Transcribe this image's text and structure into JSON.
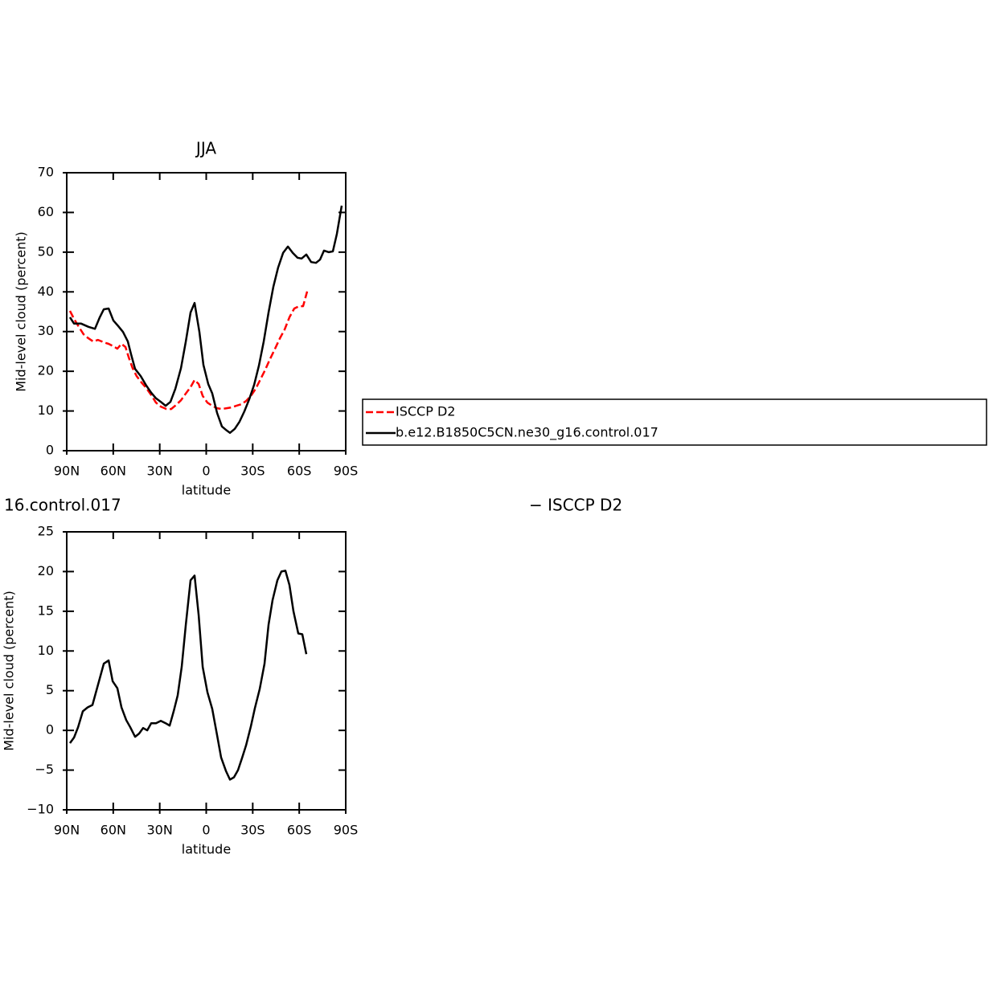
{
  "chart_data": [
    {
      "type": "line",
      "title": "JJA",
      "x_label": "latitude",
      "y_label": "Mid-level cloud (percent)",
      "xlim": [
        90,
        -90
      ],
      "xticks": [
        {
          "value": 90,
          "label": "90N"
        },
        {
          "value": 60,
          "label": "60N"
        },
        {
          "value": 30,
          "label": "30N"
        },
        0,
        {
          "value": -30,
          "label": "30S"
        },
        {
          "value": -60,
          "label": "60S"
        },
        {
          "value": -90,
          "label": "90S"
        }
      ],
      "ylim": [
        0,
        70
      ],
      "yticks": [
        0,
        10,
        20,
        30,
        40,
        50,
        60,
        70
      ],
      "legend": "right",
      "series": [
        {
          "name": "ISCCP D2",
          "color": "#ff0000",
          "style": "dashed",
          "x": [
            87.9,
            85.3,
            82.2,
            79.1,
            76,
            72.9,
            69.8,
            66.1,
            63,
            59.9,
            57.3,
            54.7,
            52.1,
            50,
            47.5,
            44.9,
            41.8,
            38.7,
            35.5,
            32.4,
            29.3,
            25.7,
            22.6,
            19.5,
            16.3,
            13.2,
            10.1,
            7.5,
            4.9,
            2.3,
            -0.8,
            -3.9,
            -7,
            -10.1,
            -13.2,
            -16.3,
            -19.4,
            -22.6,
            -25.7,
            -28.8,
            -31.9,
            -35,
            -38.1,
            -41.2,
            -44.4,
            -47.5,
            -50.6,
            -53.7,
            -56.8,
            -59.9,
            -62.5,
            -65.1
          ],
          "values": [
            35.2,
            33.2,
            31.2,
            29.3,
            28.3,
            27.5,
            27.9,
            27.3,
            26.9,
            26.3,
            25.7,
            26.9,
            26.1,
            23.5,
            20.8,
            18.8,
            17.2,
            15.8,
            14,
            12.1,
            11.1,
            10.5,
            10.5,
            11.5,
            12.7,
            14.4,
            16,
            17.8,
            16.8,
            13.8,
            12.1,
            11.3,
            10.7,
            10.5,
            10.7,
            10.9,
            11.3,
            11.7,
            12.5,
            13.8,
            15.6,
            18,
            20.4,
            23.1,
            25.7,
            28.3,
            30.5,
            33.6,
            35.8,
            36.4,
            36.4,
            40.1
          ]
        },
        {
          "name": "b.e12.B1850C5CN.ne30_g16.control.017",
          "color": "#000000",
          "style": "solid",
          "x": [
            87.9,
            85.3,
            80.7,
            76,
            71.8,
            68.7,
            66.1,
            63,
            59.9,
            56.8,
            53.7,
            50.6,
            48.5,
            45.9,
            42.3,
            38.7,
            35.5,
            32.4,
            29.3,
            26.2,
            23.1,
            19.9,
            16.3,
            13.2,
            10.1,
            7.5,
            4.4,
            1.8,
            -1.3,
            -3.9,
            -7,
            -10.1,
            -13.2,
            -15.3,
            -18.4,
            -21.5,
            -24.6,
            -27.7,
            -30.9,
            -34,
            -37.1,
            -40.2,
            -43.3,
            -46.4,
            -49.6,
            -52.7,
            -55.8,
            -58.9,
            -61.5,
            -64.6,
            -67.7,
            -70.8,
            -73.4,
            -76,
            -79.1,
            -81.7,
            -84.3,
            -87.4
          ],
          "values": [
            33.6,
            32,
            32,
            31.2,
            30.7,
            33.6,
            35.6,
            35.8,
            32.8,
            31.4,
            29.9,
            27.5,
            24.3,
            20.6,
            18.8,
            16.4,
            14.6,
            13.2,
            12.3,
            11.3,
            12.3,
            15.6,
            20.8,
            27.5,
            34.8,
            37.2,
            29.9,
            21.6,
            16.8,
            14.4,
            9.5,
            6.1,
            5.1,
            4.5,
            5.5,
            7.3,
            9.9,
            12.9,
            16.6,
            21.4,
            27.5,
            34.8,
            41.3,
            46.1,
            49.8,
            51.4,
            49.8,
            48.6,
            48.4,
            49.4,
            47.5,
            47.3,
            48.1,
            50.4,
            50,
            50.2,
            54.6,
            61.7
          ]
        }
      ]
    },
    {
      "type": "line",
      "title_left": "16.control.017",
      "title_right": "− ISCCP D2",
      "x_label": "latitude",
      "y_label": "Mid-level cloud (percent)",
      "xlim": [
        90,
        -90
      ],
      "xticks": [
        {
          "value": 90,
          "label": "90N"
        },
        {
          "value": 60,
          "label": "60N"
        },
        {
          "value": 30,
          "label": "30N"
        },
        0,
        {
          "value": -30,
          "label": "30S"
        },
        {
          "value": -60,
          "label": "60S"
        },
        {
          "value": -90,
          "label": "90S"
        }
      ],
      "ylim": [
        -10,
        25
      ],
      "yticks": [
        {
          "value": -10,
          "label": "−10"
        },
        {
          "value": -5,
          "label": "−5"
        },
        0,
        5,
        10,
        15,
        20,
        25
      ],
      "series": [
        {
          "color": "#000000",
          "style": "solid",
          "x": [
            87.9,
            85.3,
            82.7,
            79.6,
            76.5,
            73.4,
            66.1,
            63,
            60.4,
            57.3,
            54.7,
            51.6,
            49,
            45.9,
            43.3,
            40.7,
            38.1,
            35.5,
            32.4,
            29.3,
            26.2,
            23.6,
            21,
            18.4,
            15.8,
            13.2,
            10.1,
            7.5,
            4.9,
            2.3,
            -0.8,
            -3.9,
            -7,
            -9.6,
            -12.7,
            -15.3,
            -17.9,
            -20.5,
            -23.1,
            -25.7,
            -28.8,
            -31.4,
            -34.5,
            -37.6,
            -40.2,
            -42.8,
            -45.9,
            -48.5,
            -51.1,
            -53.7,
            -56.3,
            -59.4,
            -62,
            -64.6
          ],
          "values": [
            -1.6,
            -0.9,
            0.4,
            2.4,
            2.9,
            3.2,
            8.4,
            8.8,
            6.2,
            5.3,
            2.9,
            1.3,
            0.4,
            -0.8,
            -0.4,
            0.3,
            0,
            0.9,
            0.9,
            1.2,
            0.9,
            0.6,
            2.4,
            4.4,
            8,
            13.3,
            18.9,
            19.5,
            14.5,
            8,
            4.8,
            2.7,
            -0.6,
            -3.4,
            -5.1,
            -6.2,
            -5.9,
            -5,
            -3.5,
            -1.9,
            0.5,
            2.8,
            5.2,
            8.4,
            13.3,
            16.4,
            18.9,
            20,
            20.1,
            18.3,
            15,
            12.2,
            12.1,
            9.6
          ]
        }
      ]
    }
  ]
}
